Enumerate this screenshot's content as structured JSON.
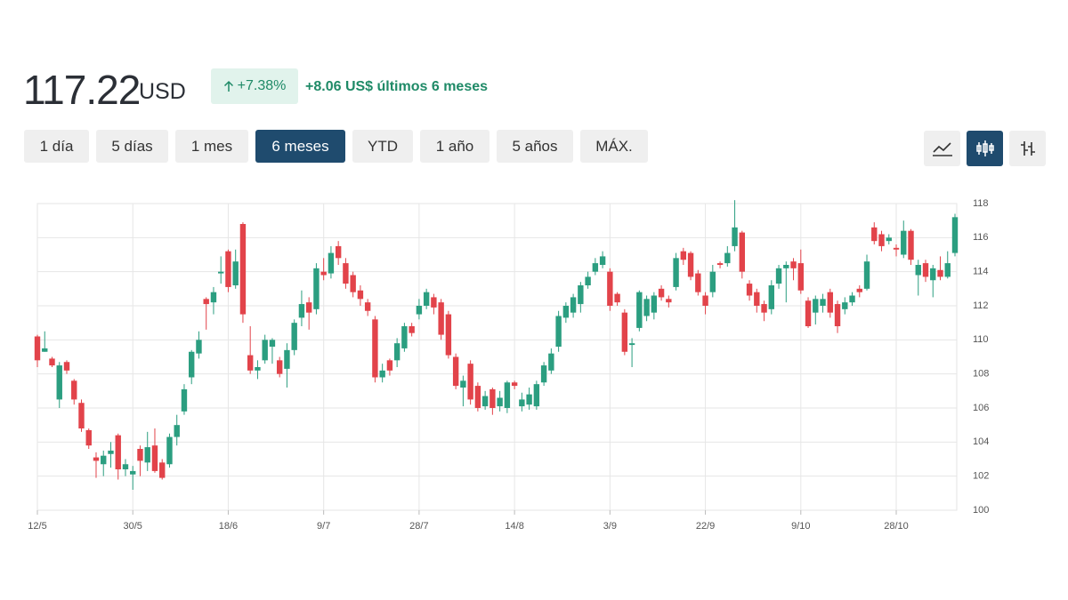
{
  "header": {
    "price": "117.22",
    "currency": "USD",
    "change_pct": "+7.38%",
    "change_abs": "+8.06",
    "change_text": "US$ últimos 6 meses"
  },
  "ranges": {
    "buttons": [
      "1 día",
      "5 días",
      "1 mes",
      "6 meses",
      "YTD",
      "1 año",
      "5 años",
      "MÁX."
    ],
    "active": 3
  },
  "chart_types": {
    "active": 1
  },
  "chart_data": {
    "type": "candlestick",
    "categories": [
      "12/5",
      null,
      null,
      null,
      null,
      null,
      null,
      null,
      null,
      null,
      null,
      null,
      null,
      "30/5",
      null,
      null,
      null,
      null,
      null,
      null,
      null,
      null,
      null,
      null,
      null,
      null,
      "18/6",
      null,
      null,
      null,
      null,
      null,
      null,
      null,
      null,
      null,
      null,
      null,
      null,
      "9/7",
      null,
      null,
      null,
      null,
      null,
      null,
      null,
      null,
      null,
      null,
      null,
      null,
      "28/7",
      null,
      null,
      null,
      null,
      null,
      null,
      null,
      null,
      null,
      null,
      null,
      null,
      "14/8",
      null,
      null,
      null,
      null,
      null,
      null,
      null,
      null,
      null,
      null,
      null,
      null,
      "3/9",
      null,
      null,
      null,
      null,
      null,
      null,
      null,
      null,
      null,
      null,
      null,
      null,
      "22/9",
      null,
      null,
      null,
      null,
      null,
      null,
      null,
      null,
      null,
      null,
      null,
      null,
      "9/10",
      null,
      null,
      null,
      null,
      null,
      null,
      null,
      null,
      null,
      null,
      null,
      null,
      "28/10",
      null,
      null,
      null,
      null,
      null,
      null,
      null,
      null
    ],
    "open": [
      110.2,
      109.3,
      108.9,
      106.5,
      108.7,
      107.6,
      106.3,
      104.7,
      103.1,
      102.7,
      103.3,
      104.4,
      102.4,
      102.1,
      103.6,
      102.8,
      103.8,
      102.8,
      102.7,
      104.3,
      105.8,
      107.8,
      109.2,
      112.4,
      112.2,
      113.9,
      115.2,
      113.2,
      116.8,
      109.1,
      108.2,
      108.8,
      109.6,
      108.8,
      108.3,
      109.4,
      111.3,
      112.2,
      111.8,
      114,
      113.9,
      115.5,
      114.5,
      113.8,
      112.9,
      112.2,
      111.2,
      107.8,
      108.8,
      108.8,
      109.5,
      110.8,
      111.5,
      112,
      112.5,
      112.2,
      111.5,
      109,
      107.2,
      108.6,
      107.3,
      106.1,
      107.1,
      106.1,
      106,
      107.5,
      106.1,
      106.2,
      106.1,
      107.5,
      108.2,
      109.6,
      111.3,
      111.6,
      112.1,
      113.2,
      114,
      114.4,
      114,
      112.7,
      111.6,
      109.7,
      110.7,
      111.4,
      111.6,
      113,
      112.4,
      113.1,
      115.2,
      115.1,
      113.9,
      112.6,
      112.8,
      114.5,
      114.5,
      115.5,
      116.3,
      113.3,
      112.8,
      112.1,
      111.8,
      113.3,
      114.2,
      114.6,
      114.5,
      112.3,
      111.6,
      112,
      112.8,
      112.1,
      111.8,
      112.2,
      113,
      113,
      116.6,
      116.2,
      115.8,
      115.4,
      115,
      116.4,
      113.8,
      114.5,
      113.5,
      114.1,
      113.7,
      115.1
    ],
    "high": [
      110.3,
      110.5,
      109,
      108.7,
      108.8,
      107.7,
      106.5,
      104.8,
      103.4,
      103.5,
      104,
      104.5,
      103,
      102.6,
      103.8,
      104.6,
      104.8,
      103,
      104.5,
      105.6,
      107.4,
      109.4,
      110.5,
      112.5,
      113.1,
      114.9,
      115.3,
      115.3,
      116.9,
      110.8,
      108.8,
      110.3,
      110.1,
      109,
      109.8,
      111.2,
      112.9,
      112.5,
      114.5,
      114.8,
      115.5,
      115.8,
      114.8,
      114,
      113.2,
      112.4,
      111.4,
      108.6,
      108.9,
      110.1,
      111,
      111,
      112.4,
      113,
      112.7,
      112.4,
      111.7,
      109.2,
      107.9,
      108.8,
      107.5,
      107,
      107.2,
      107,
      107.6,
      107.6,
      106.9,
      107.2,
      107.6,
      108.7,
      109.5,
      111.7,
      112.2,
      112.7,
      113.4,
      114,
      114.8,
      115.2,
      114.2,
      112.8,
      111.8,
      110.1,
      112.9,
      112.6,
      112.8,
      113.2,
      112.6,
      115.1,
      115.4,
      115.2,
      114.1,
      112.8,
      114.4,
      114.6,
      115.5,
      118.2,
      116.4,
      113.5,
      113,
      112.3,
      113.5,
      114.4,
      114.6,
      114.8,
      115.3,
      112.5,
      112.6,
      112.7,
      113,
      112.3,
      112.5,
      112.8,
      113.2,
      115,
      116.9,
      116.4,
      116.2,
      115.6,
      117,
      116.5,
      114.7,
      114.7,
      114.4,
      114.9,
      115.2,
      117.4
    ],
    "low": [
      108.4,
      109.3,
      108.4,
      106,
      108,
      106.2,
      104.6,
      103.6,
      101.9,
      102,
      102.5,
      101.8,
      102,
      101.2,
      102,
      102.3,
      102.2,
      101.8,
      102.5,
      103.8,
      105.6,
      107.4,
      108.9,
      110.6,
      111.5,
      113.3,
      112.8,
      113,
      111,
      108,
      107.7,
      108.6,
      108.6,
      107.8,
      107.2,
      109.1,
      110.8,
      110.6,
      111.5,
      113.5,
      113.6,
      114.4,
      113,
      112.5,
      112,
      111.4,
      107.5,
      107.5,
      107.9,
      108.4,
      109.3,
      110.2,
      111.2,
      111.8,
      111.5,
      110,
      108.9,
      107.1,
      106.1,
      106.2,
      105.8,
      105.9,
      105.6,
      105.8,
      105.7,
      107.1,
      105.8,
      105.9,
      105.9,
      107.3,
      108,
      109.3,
      111,
      111.3,
      111.6,
      113,
      113.8,
      114.2,
      111.7,
      112,
      109.1,
      108.4,
      110.5,
      111.1,
      111.2,
      112.3,
      111.9,
      112.9,
      114.4,
      113.5,
      112.6,
      111.5,
      112.5,
      114.2,
      114.3,
      115.2,
      113.6,
      112.3,
      111.6,
      111.1,
      111.5,
      113,
      112.2,
      113.5,
      112.7,
      110.7,
      110.9,
      111.6,
      111.3,
      110.4,
      111.5,
      112,
      112.5,
      112.9,
      115.6,
      115.2,
      115.6,
      114.9,
      114.8,
      114.4,
      112.6,
      113.4,
      112.5,
      113.5,
      113.6,
      114.9
    ],
    "close": [
      108.8,
      109.5,
      108.5,
      108.5,
      108.2,
      106.5,
      104.8,
      103.8,
      102.9,
      103.2,
      103.5,
      102.4,
      102.7,
      102.3,
      102.9,
      103.7,
      102.3,
      101.9,
      104.3,
      105,
      107.1,
      109.3,
      110,
      112.1,
      112.8,
      114,
      113.1,
      114.6,
      111.5,
      108.2,
      108.4,
      110,
      110,
      108,
      109.4,
      111,
      112.1,
      111.6,
      114.2,
      113.8,
      115.1,
      114.8,
      113.3,
      112.8,
      112.4,
      111.7,
      107.8,
      108.2,
      108.2,
      109.8,
      110.8,
      110.4,
      112,
      112.8,
      111.9,
      110.3,
      109.1,
      107.3,
      107.6,
      106.5,
      106,
      106.7,
      106,
      106.6,
      107.5,
      107.3,
      106.5,
      106.8,
      107.4,
      108.5,
      109.2,
      111.4,
      112,
      112.5,
      113.2,
      113.7,
      114.5,
      114.9,
      112,
      112.2,
      109.3,
      109.8,
      112.8,
      112.4,
      112.6,
      112.5,
      112.2,
      114.8,
      114.7,
      113.7,
      112.8,
      112,
      114,
      114.4,
      115.1,
      116.6,
      114,
      112.6,
      112,
      111.6,
      113.2,
      114.2,
      114.4,
      114.2,
      112.9,
      110.8,
      112.4,
      112.4,
      111.6,
      110.8,
      112.2,
      112.6,
      112.8,
      114.6,
      115.8,
      115.5,
      116,
      115.3,
      116.4,
      114.7,
      114.4,
      113.7,
      114.2,
      113.7,
      114.5,
      117.2
    ],
    "ylim": [
      100,
      118
    ],
    "yticks": [
      100,
      102,
      104,
      106,
      108,
      110,
      112,
      114,
      116,
      118
    ],
    "grid": true,
    "up_color": "#2b9e80",
    "down_color": "#e2434a"
  }
}
